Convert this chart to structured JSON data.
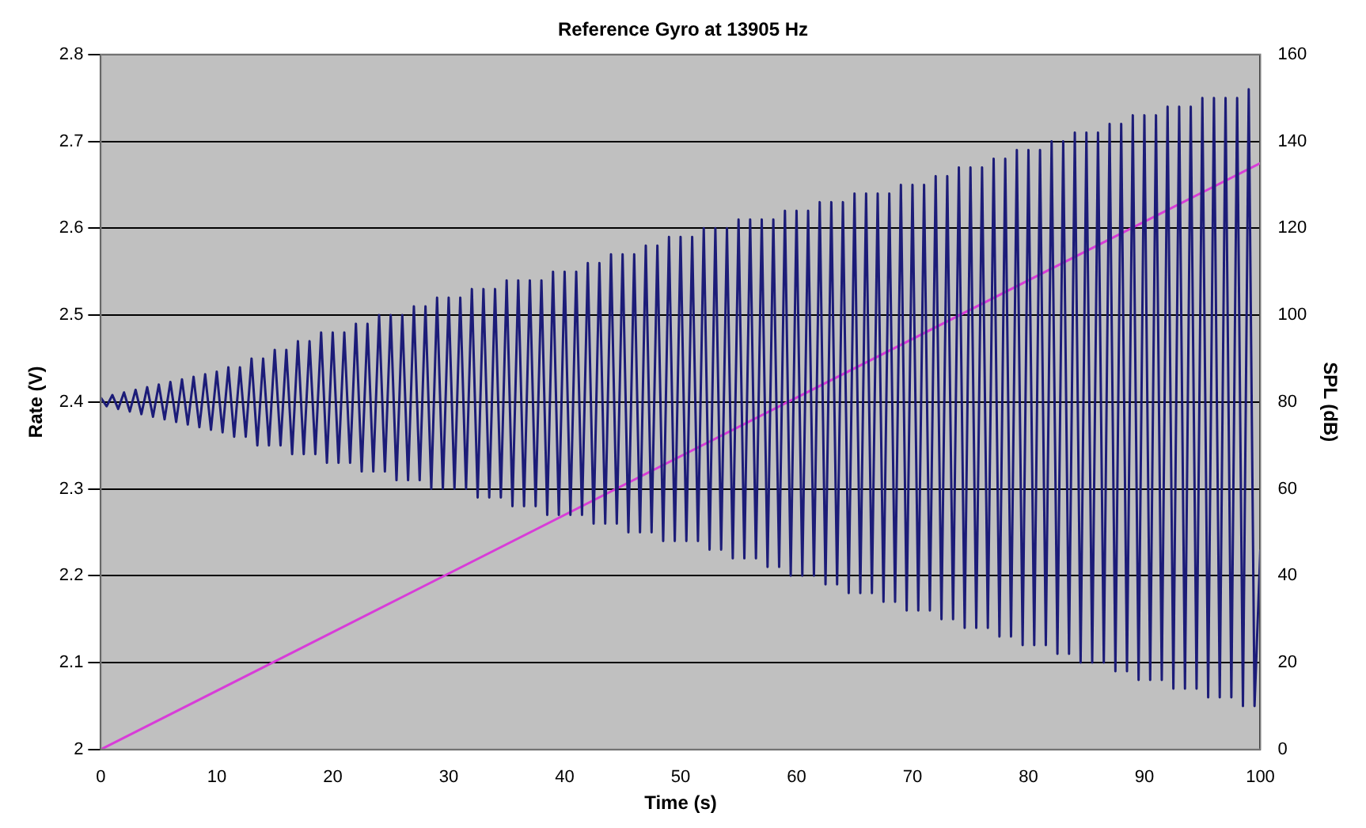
{
  "chart_data": {
    "type": "line",
    "title": "Reference Gyro at 13905 Hz",
    "xlabel": "Time (s)",
    "ylabel": "Rate (V)",
    "y2label": "SPL (dB)",
    "xlim": [
      0,
      100
    ],
    "xticks": [
      0,
      10,
      20,
      30,
      40,
      50,
      60,
      70,
      80,
      90,
      100
    ],
    "ylim": [
      2,
      2.8
    ],
    "yticks": [
      2,
      2.1,
      2.2,
      2.3,
      2.4,
      2.5,
      2.6,
      2.7,
      2.8
    ],
    "y2lim": [
      0,
      160
    ],
    "y2ticks": [
      0,
      20,
      40,
      60,
      80,
      100,
      120,
      140,
      160
    ],
    "grid": "y",
    "legend": false,
    "marker": "none",
    "line_style": "solid",
    "series": [
      {
        "color": "#1c1c78",
        "x": [
          0,
          0.5,
          1,
          1.5,
          2,
          2.5,
          3,
          3.5,
          4,
          4.5,
          5,
          5.5,
          6,
          6.5,
          7,
          7.5,
          8,
          8.5,
          9,
          9.5,
          10,
          10.5,
          11,
          11.5,
          12,
          12.5,
          13,
          13.5,
          14,
          14.5,
          15,
          15.5,
          16,
          16.5,
          17,
          17.5,
          18,
          18.5,
          19,
          19.5,
          20,
          20.5,
          21,
          21.5,
          22,
          22.5,
          23,
          23.5,
          24,
          24.5,
          25,
          25.5,
          26,
          26.5,
          27,
          27.5,
          28,
          28.5,
          29,
          29.5,
          30,
          30.5,
          31,
          31.5,
          32,
          32.5,
          33,
          33.5,
          34,
          34.5,
          35,
          35.5,
          36,
          36.5,
          37,
          37.5,
          38,
          38.5,
          39,
          39.5,
          40,
          40.5,
          41,
          41.5,
          42,
          42.5,
          43,
          43.5,
          44,
          44.5,
          45,
          45.5,
          46,
          46.5,
          47,
          47.5,
          48,
          48.5,
          49,
          49.5,
          50,
          50.5,
          51,
          51.5,
          52,
          52.5,
          53,
          53.5,
          54,
          54.5,
          55,
          55.5,
          56,
          56.5,
          57,
          57.5,
          58,
          58.5,
          59,
          59.5,
          60,
          60.5,
          61,
          61.5,
          62,
          62.5,
          63,
          63.5,
          64,
          64.5,
          65,
          65.5,
          66,
          66.5,
          67,
          67.5,
          68,
          68.5,
          69,
          69.5,
          70,
          70.5,
          71,
          71.5,
          72,
          72.5,
          73,
          73.5,
          74,
          74.5,
          75,
          75.5,
          76,
          76.5,
          77,
          77.5,
          78,
          78.5,
          79,
          79.5,
          80,
          80.5,
          81,
          81.5,
          82,
          82.5,
          83,
          83.5,
          84,
          84.5,
          85,
          85.5,
          86,
          86.5,
          87,
          87.5,
          88,
          88.5,
          89,
          89.5,
          90,
          90.5,
          91,
          91.5,
          92,
          92.5,
          93,
          93.5,
          94,
          94.5,
          95,
          95.5,
          96,
          96.5,
          97,
          97.5,
          98,
          98.5,
          99,
          99.5,
          100
        ],
        "values": [
          2.405,
          2.395,
          2.408,
          2.392,
          2.411,
          2.389,
          2.414,
          2.386,
          2.417,
          2.383,
          2.42,
          2.38,
          2.423,
          2.377,
          2.426,
          2.374,
          2.429,
          2.371,
          2.432,
          2.368,
          2.435,
          2.365,
          2.44,
          2.36,
          2.44,
          2.36,
          2.45,
          2.35,
          2.45,
          2.35,
          2.46,
          2.35,
          2.46,
          2.34,
          2.47,
          2.34,
          2.47,
          2.34,
          2.48,
          2.33,
          2.48,
          2.33,
          2.48,
          2.33,
          2.49,
          2.32,
          2.49,
          2.32,
          2.5,
          2.32,
          2.5,
          2.31,
          2.5,
          2.31,
          2.51,
          2.31,
          2.51,
          2.3,
          2.52,
          2.3,
          2.52,
          2.3,
          2.52,
          2.3,
          2.53,
          2.29,
          2.53,
          2.29,
          2.53,
          2.29,
          2.54,
          2.28,
          2.54,
          2.28,
          2.54,
          2.28,
          2.54,
          2.27,
          2.55,
          2.27,
          2.55,
          2.27,
          2.55,
          2.27,
          2.56,
          2.26,
          2.56,
          2.26,
          2.57,
          2.26,
          2.57,
          2.25,
          2.57,
          2.25,
          2.58,
          2.25,
          2.58,
          2.24,
          2.59,
          2.24,
          2.59,
          2.24,
          2.59,
          2.24,
          2.6,
          2.23,
          2.6,
          2.23,
          2.6,
          2.22,
          2.61,
          2.22,
          2.61,
          2.22,
          2.61,
          2.21,
          2.61,
          2.21,
          2.62,
          2.2,
          2.62,
          2.2,
          2.62,
          2.2,
          2.63,
          2.19,
          2.63,
          2.19,
          2.63,
          2.18,
          2.64,
          2.18,
          2.64,
          2.18,
          2.64,
          2.17,
          2.64,
          2.17,
          2.65,
          2.16,
          2.65,
          2.16,
          2.65,
          2.16,
          2.66,
          2.15,
          2.66,
          2.15,
          2.67,
          2.14,
          2.67,
          2.14,
          2.67,
          2.14,
          2.68,
          2.13,
          2.68,
          2.13,
          2.69,
          2.12,
          2.69,
          2.12,
          2.69,
          2.12,
          2.7,
          2.11,
          2.7,
          2.11,
          2.71,
          2.1,
          2.71,
          2.1,
          2.71,
          2.1,
          2.72,
          2.09,
          2.72,
          2.09,
          2.73,
          2.08,
          2.73,
          2.08,
          2.73,
          2.08,
          2.74,
          2.07,
          2.74,
          2.07,
          2.74,
          2.07,
          2.75,
          2.06,
          2.75,
          2.06,
          2.75,
          2.06,
          2.75,
          2.05,
          2.76,
          2.05,
          2.23
        ]
      },
      {
        "color": "#d83cd8",
        "axis": "y2",
        "x": [
          0,
          100
        ],
        "values": [
          0,
          135
        ]
      }
    ]
  }
}
